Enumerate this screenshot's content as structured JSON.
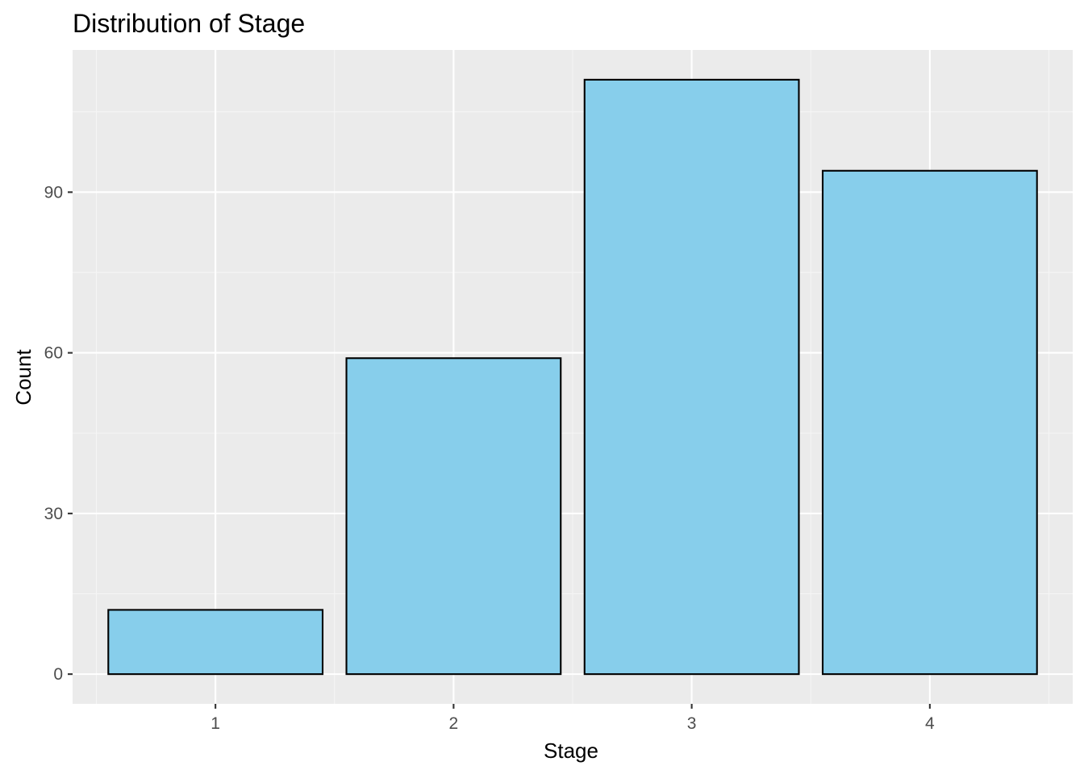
{
  "chart_data": {
    "type": "bar",
    "title": "Distribution of Stage",
    "xlabel": "Stage",
    "ylabel": "Count",
    "categories": [
      "1",
      "2",
      "3",
      "4"
    ],
    "values": [
      12,
      59,
      111,
      94
    ],
    "ylim": [
      -5.55,
      116.55
    ],
    "yticks": [
      0,
      30,
      60,
      90
    ],
    "grid": true,
    "legend": "none",
    "colors": {
      "panel_background": "#EBEBEB",
      "grid_major": "#FFFFFF",
      "grid_minor": "#F5F5F5",
      "bar_fill": "#87CEEB",
      "bar_outline": "#000000",
      "tick_text": "#4D4D4D",
      "tick_mark": "#333333"
    }
  }
}
